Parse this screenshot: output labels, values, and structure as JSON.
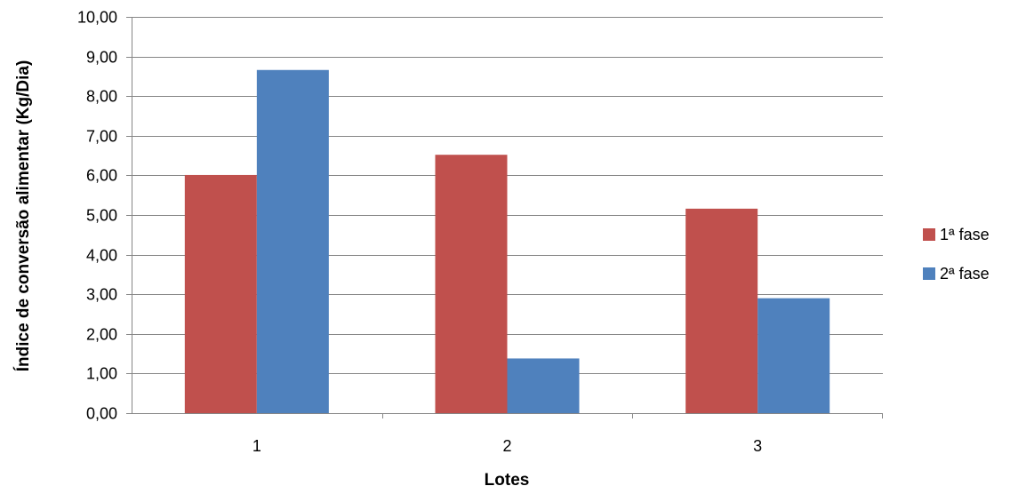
{
  "chart_data": {
    "type": "bar",
    "title": "",
    "xlabel": "Lotes",
    "ylabel": "Índice de conversão alimentar (Kg/Dia)",
    "categories": [
      "1",
      "2",
      "3"
    ],
    "series": [
      {
        "name": "1ª fase",
        "color": "#C0504D",
        "values": [
          6.01,
          6.52,
          5.16
        ]
      },
      {
        "name": "2ª fase",
        "color": "#4F81BD",
        "values": [
          8.66,
          1.38,
          2.9
        ]
      }
    ],
    "ylim": [
      0,
      10
    ],
    "y_ticks": [
      "0,00",
      "1,00",
      "2,00",
      "3,00",
      "4,00",
      "5,00",
      "6,00",
      "7,00",
      "8,00",
      "9,00",
      "10,00"
    ],
    "grid": true,
    "legend_position": "right"
  }
}
